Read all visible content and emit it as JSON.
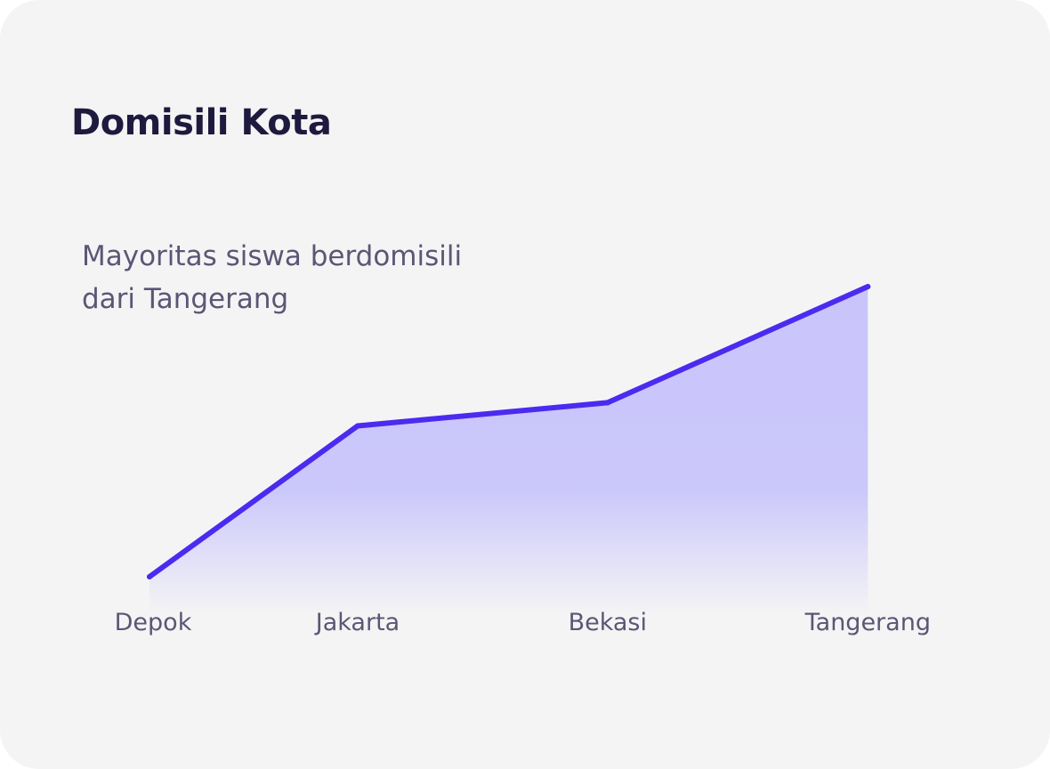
{
  "card": {
    "title": "Domisili Kota",
    "subtitle_lines": [
      "Mayoritas siswa berdomisili",
      "dari Tangerang"
    ]
  },
  "colors": {
    "background": "#f4f4f5",
    "title": "#1e1a3e",
    "text": "#5a5775",
    "line": "#4b2bef",
    "area": "#c9c5fb"
  },
  "chart_data": {
    "type": "area",
    "title": "Domisili Kota",
    "subtitle": "Mayoritas siswa berdomisili dari Tangerang",
    "categories": [
      "Depok",
      "Jakarta",
      "Bekasi",
      "Tangerang"
    ],
    "series": [
      {
        "values": [
          0,
          52,
          60,
          100
        ]
      }
    ],
    "x": [
      0,
      1,
      2.2,
      3.45
    ],
    "ylim": [
      0,
      100
    ],
    "grid": false,
    "legend": "none",
    "xlabel": "",
    "ylabel": ""
  }
}
